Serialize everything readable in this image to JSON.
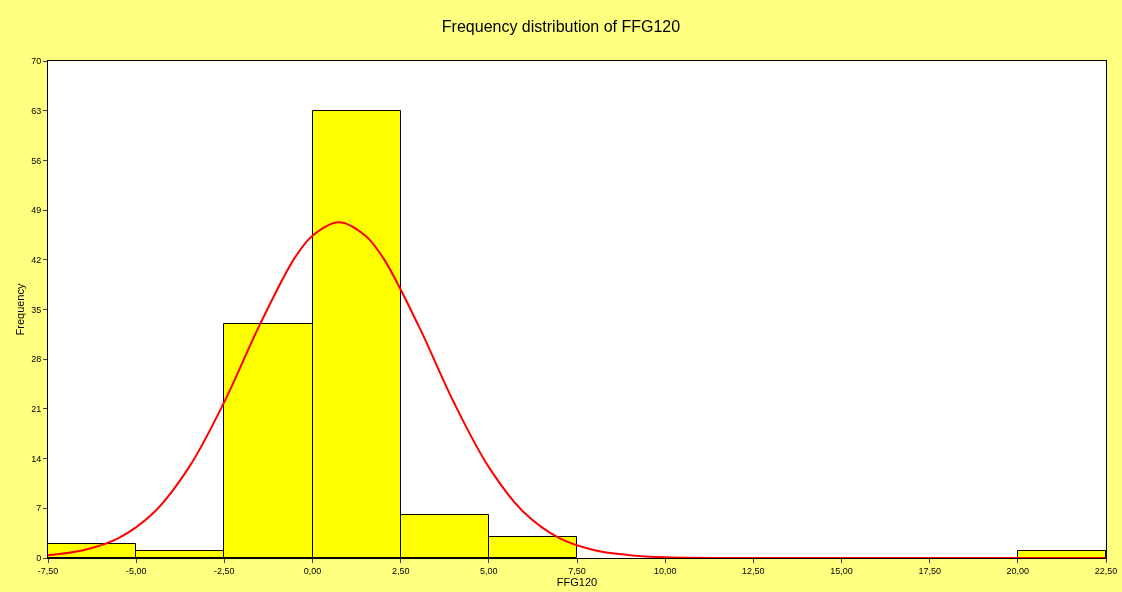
{
  "chart_data": {
    "type": "histogram",
    "title": "Frequency distribution of FFG120",
    "xlabel": "FFG120",
    "ylabel": "Frequency",
    "bins": [
      -7.5,
      -5,
      -2.5,
      0,
      2.5,
      5,
      7.5,
      10,
      12.5,
      15,
      17.5,
      20,
      22.5
    ],
    "values": [
      2,
      1,
      33,
      63,
      6,
      3,
      0,
      0,
      0,
      0,
      0,
      1
    ],
    "color": "#ffff00",
    "series": [
      {
        "type": "line",
        "color": "#ff0000",
        "x": [
          -7.5,
          -6.5,
          -5.5,
          -4.5,
          -3.5,
          -2.5,
          -1.5,
          -0.5,
          0,
          0.75,
          1.5,
          2,
          3,
          4,
          5,
          6,
          7,
          8,
          9,
          10,
          12,
          15,
          20,
          22.5
        ],
        "values": [
          0.4,
          1.1,
          2.8,
          6.4,
          12.8,
          22,
          32.8,
          42.3,
          45.4,
          47.3,
          45.4,
          42.3,
          32.8,
          22,
          12.8,
          6.4,
          2.8,
          1.1,
          0.4,
          0.1,
          0,
          0,
          0,
          0
        ]
      }
    ],
    "xlim": [
      -7.5,
      22.5
    ],
    "xticks": [
      {
        "value": -7.5,
        "label": "-7,50"
      },
      {
        "value": -5,
        "label": "-5,00"
      },
      {
        "value": -2.5,
        "label": "-2,50"
      },
      {
        "value": 0,
        "label": "0,00"
      },
      {
        "value": 2.5,
        "label": "2,50"
      },
      {
        "value": 5,
        "label": "5,00"
      },
      {
        "value": 7.5,
        "label": "7,50"
      },
      {
        "value": 10,
        "label": "10,00"
      },
      {
        "value": 12.5,
        "label": "12,50"
      },
      {
        "value": 15,
        "label": "15,00"
      },
      {
        "value": 17.5,
        "label": "17,50"
      },
      {
        "value": 20,
        "label": "20,00"
      },
      {
        "value": 22.5,
        "label": "22,50"
      }
    ],
    "ylim": [
      0,
      70
    ],
    "yticks": [
      0,
      7,
      14,
      21,
      28,
      35,
      42,
      49,
      56,
      63,
      70
    ],
    "grid": false
  }
}
